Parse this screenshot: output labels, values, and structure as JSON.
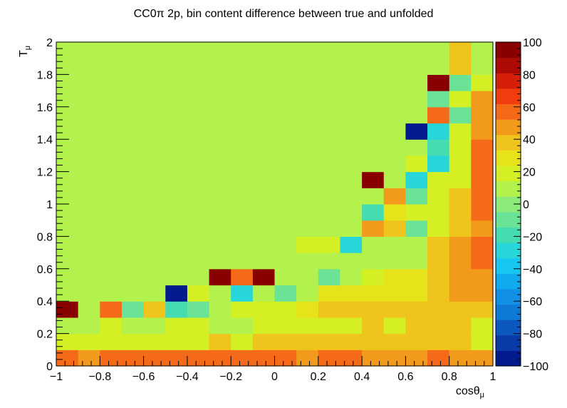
{
  "chart_data": {
    "type": "heatmap",
    "title": "CC0π 2p, bin content difference between true and unfolded",
    "xlabel": "cosθ",
    "xlabel_sub": "μ",
    "ylabel": "T",
    "ylabel_sub": "μ",
    "xlim": [
      -1,
      1
    ],
    "ylim": [
      0,
      2
    ],
    "zlim": [
      -100,
      100
    ],
    "x_ticks": [
      -1,
      -0.8,
      -0.6,
      -0.4,
      -0.2,
      0,
      0.2,
      0.4,
      0.6,
      0.8,
      1
    ],
    "x_tick_labels": [
      "−1",
      "−0.8",
      "−0.6",
      "−0.4",
      "−0.2",
      "0",
      "0.2",
      "0.4",
      "0.6",
      "0.8",
      "1"
    ],
    "y_ticks": [
      0,
      0.2,
      0.4,
      0.6,
      0.8,
      1,
      1.2,
      1.4,
      1.6,
      1.8,
      2
    ],
    "y_tick_labels": [
      "0",
      "0.2",
      "0.4",
      "0.6",
      "0.8",
      "1",
      "1.2",
      "1.4",
      "1.6",
      "1.8",
      "2"
    ],
    "z_ticks": [
      -100,
      -80,
      -60,
      -40,
      -20,
      0,
      20,
      40,
      60,
      80,
      100
    ],
    "z_tick_labels": [
      "−100",
      "−80",
      "−60",
      "−40",
      "−20",
      "0",
      "20",
      "40",
      "60",
      "80",
      "100"
    ],
    "nx": 20,
    "ny": 20,
    "z": [
      [
        60,
        48,
        60,
        60,
        60,
        60,
        60,
        60,
        60,
        60,
        60,
        48,
        60,
        60,
        48,
        48,
        48,
        60,
        48,
        48
      ],
      [
        20,
        20,
        20,
        20,
        20,
        20,
        20,
        35,
        20,
        35,
        35,
        35,
        35,
        35,
        35,
        35,
        35,
        35,
        35,
        20
      ],
      [
        7,
        7,
        20,
        7,
        7,
        20,
        20,
        7,
        7,
        20,
        20,
        20,
        20,
        20,
        35,
        20,
        35,
        35,
        35,
        20
      ],
      [
        100,
        7,
        60,
        -5,
        35,
        -18,
        -5,
        7,
        20,
        20,
        20,
        28,
        35,
        35,
        35,
        35,
        35,
        35,
        35,
        35
      ],
      [
        7,
        7,
        7,
        7,
        7,
        -100,
        20,
        7,
        -30,
        7,
        -5,
        7,
        28,
        28,
        28,
        28,
        28,
        35,
        48,
        48
      ],
      [
        7,
        7,
        7,
        7,
        7,
        7,
        7,
        100,
        60,
        100,
        7,
        7,
        -5,
        7,
        20,
        28,
        28,
        35,
        48,
        48
      ],
      [
        7,
        7,
        7,
        7,
        7,
        7,
        7,
        7,
        7,
        7,
        7,
        7,
        7,
        7,
        7,
        7,
        7,
        35,
        48,
        60
      ],
      [
        7,
        7,
        7,
        7,
        7,
        7,
        7,
        7,
        7,
        7,
        7,
        20,
        20,
        -30,
        7,
        7,
        7,
        35,
        48,
        60
      ],
      [
        7,
        7,
        7,
        7,
        7,
        7,
        7,
        7,
        7,
        7,
        7,
        7,
        7,
        7,
        48,
        35,
        -5,
        20,
        35,
        48
      ],
      [
        7,
        7,
        7,
        7,
        7,
        7,
        7,
        7,
        7,
        7,
        7,
        7,
        7,
        7,
        -18,
        28,
        20,
        20,
        35,
        60
      ],
      [
        7,
        7,
        7,
        7,
        7,
        7,
        7,
        7,
        7,
        7,
        7,
        7,
        7,
        7,
        7,
        48,
        -5,
        20,
        35,
        60
      ],
      [
        7,
        7,
        7,
        7,
        7,
        7,
        7,
        7,
        7,
        7,
        7,
        7,
        7,
        7,
        100,
        7,
        -30,
        20,
        20,
        60
      ],
      [
        7,
        7,
        7,
        7,
        7,
        7,
        7,
        7,
        7,
        7,
        7,
        7,
        7,
        7,
        7,
        7,
        20,
        -30,
        20,
        60
      ],
      [
        7,
        7,
        7,
        7,
        7,
        7,
        7,
        7,
        7,
        7,
        7,
        7,
        7,
        7,
        7,
        7,
        7,
        -18,
        20,
        60
      ],
      [
        7,
        7,
        7,
        7,
        7,
        7,
        7,
        7,
        7,
        7,
        7,
        7,
        7,
        7,
        7,
        7,
        -100,
        -30,
        20,
        48
      ],
      [
        7,
        7,
        7,
        7,
        7,
        7,
        7,
        7,
        7,
        7,
        7,
        7,
        7,
        7,
        7,
        7,
        7,
        60,
        -5,
        48
      ],
      [
        7,
        7,
        7,
        7,
        7,
        7,
        7,
        7,
        7,
        7,
        7,
        7,
        7,
        7,
        7,
        7,
        7,
        -5,
        20,
        48
      ],
      [
        7,
        7,
        7,
        7,
        7,
        7,
        7,
        7,
        7,
        7,
        7,
        7,
        7,
        7,
        7,
        7,
        7,
        100,
        -5,
        20
      ],
      [
        7,
        7,
        7,
        7,
        7,
        7,
        7,
        7,
        7,
        7,
        7,
        7,
        7,
        7,
        7,
        7,
        7,
        7,
        35,
        7
      ],
      [
        7,
        7,
        7,
        7,
        7,
        7,
        7,
        7,
        7,
        7,
        7,
        7,
        7,
        7,
        7,
        7,
        7,
        7,
        35,
        7
      ]
    ],
    "palette": [
      "#021a8c",
      "#0a3aa6",
      "#0c58bf",
      "#0f7ad6",
      "#1290e6",
      "#12aaee",
      "#16c8ef",
      "#27d6d8",
      "#46dcb2",
      "#6ae396",
      "#8deb7a",
      "#b3f24c",
      "#d4f025",
      "#e6e31a",
      "#efc41c",
      "#f29a1c",
      "#f56a18",
      "#f23e0f",
      "#d51f08",
      "#aa0c05",
      "#880000"
    ]
  }
}
